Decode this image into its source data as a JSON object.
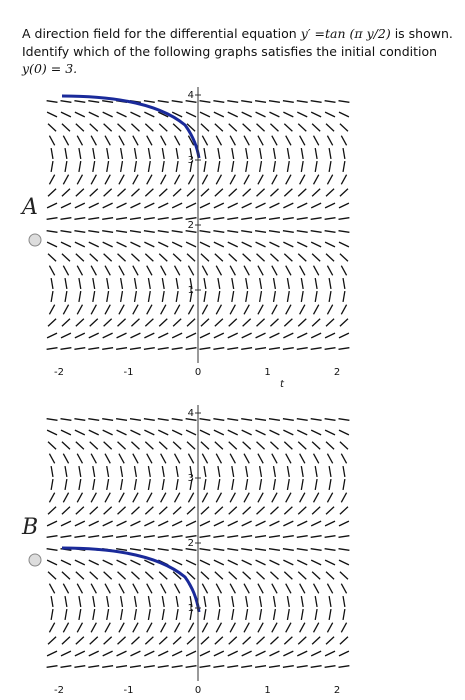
{
  "question": {
    "intro": "A direction field for the differential equation",
    "equation": "y′ =tan (π y/2)",
    "intro_end": "is shown.",
    "instruction": "Identify which of the following graphs satisfies the initial condition",
    "condition": "y(0) = 3."
  },
  "options": [
    {
      "annotation": "A",
      "graph": {
        "xticks": [
          "-2",
          "-1",
          "0",
          "1",
          "2"
        ],
        "x_label": "t",
        "yticks": [
          "4",
          "3",
          "2",
          "1"
        ]
      }
    },
    {
      "annotation": "B",
      "graph": {
        "xticks": [
          "-2",
          "-1",
          "0",
          "1",
          "2"
        ],
        "yticks": [
          "4",
          "3",
          "2",
          "1"
        ]
      }
    }
  ]
}
